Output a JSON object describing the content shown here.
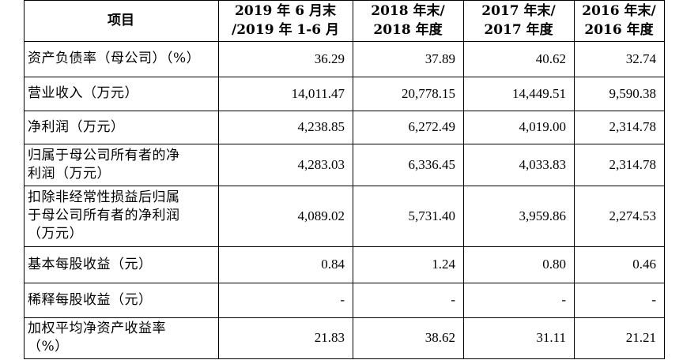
{
  "table": {
    "headers": [
      {
        "line1": "项目",
        "line2": ""
      },
      {
        "line1": "2019 年 6 月末",
        "line2": "/2019 年 1-6 月"
      },
      {
        "line1": "2018 年末/",
        "line2": "2018 年度"
      },
      {
        "line1": "2017 年末/",
        "line2": "2017 年度"
      },
      {
        "line1": "2016 年末/",
        "line2": "2016 年度"
      }
    ],
    "rows": [
      {
        "label": [
          "资产负债率（母公司）（%）"
        ],
        "values": [
          "36.29",
          "37.89",
          "40.62",
          "32.74"
        ]
      },
      {
        "label": [
          "营业收入（万元）"
        ],
        "values": [
          "14,011.47",
          "20,778.15",
          "14,449.51",
          "9,590.38"
        ]
      },
      {
        "label": [
          "净利润（万元）"
        ],
        "values": [
          "4,238.85",
          "6,272.49",
          "4,019.00",
          "2,314.78"
        ]
      },
      {
        "label": [
          "归属于母公司所有者的净",
          "利润（万元）"
        ],
        "values": [
          "4,283.03",
          "6,336.45",
          "4,033.83",
          "2,314.78"
        ]
      },
      {
        "label": [
          "扣除非经常性损益后归属",
          "于母公司所有者的净利润",
          "（万元）"
        ],
        "values": [
          "4,089.02",
          "5,731.40",
          "3,959.86",
          "2,274.53"
        ]
      },
      {
        "label": [
          "基本每股收益（元）"
        ],
        "values": [
          "0.84",
          "1.24",
          "0.80",
          "0.46"
        ]
      },
      {
        "label": [
          "稀释每股收益（元）"
        ],
        "values": [
          "-",
          "-",
          "-",
          "-"
        ]
      },
      {
        "label": [
          "加权平均净资产收益率",
          "（%）"
        ],
        "values": [
          "21.83",
          "38.62",
          "31.11",
          "21.21"
        ]
      }
    ]
  }
}
